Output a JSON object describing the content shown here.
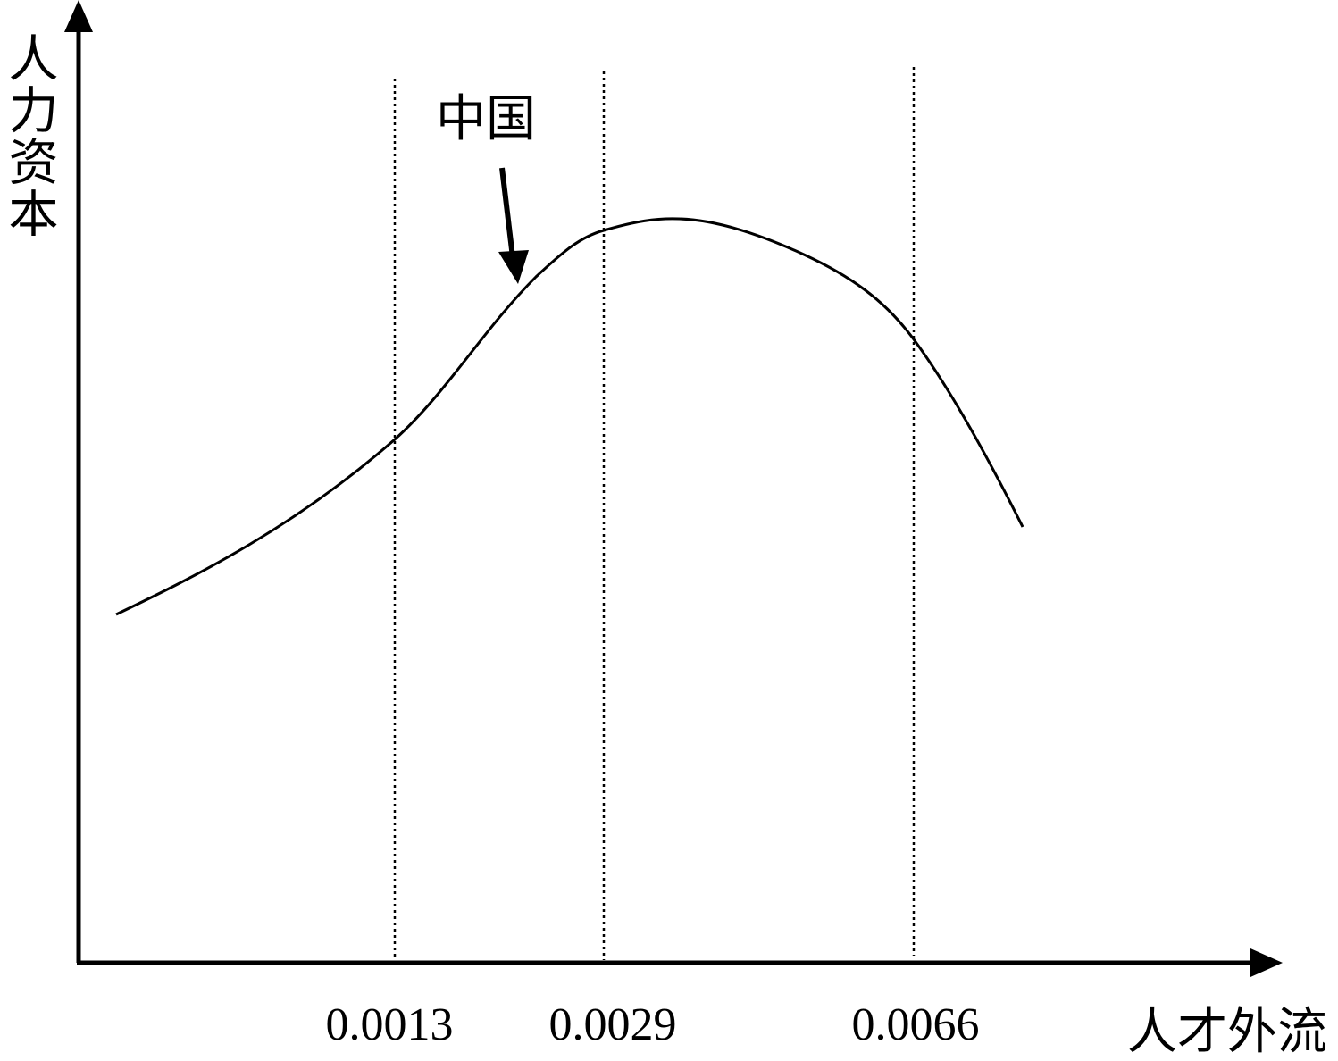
{
  "y_axis_label": "人力资本",
  "x_axis_label": "人才外流",
  "annotation": "中国",
  "thresholds": [
    "0.0013",
    "0.0029",
    "0.0066"
  ]
}
